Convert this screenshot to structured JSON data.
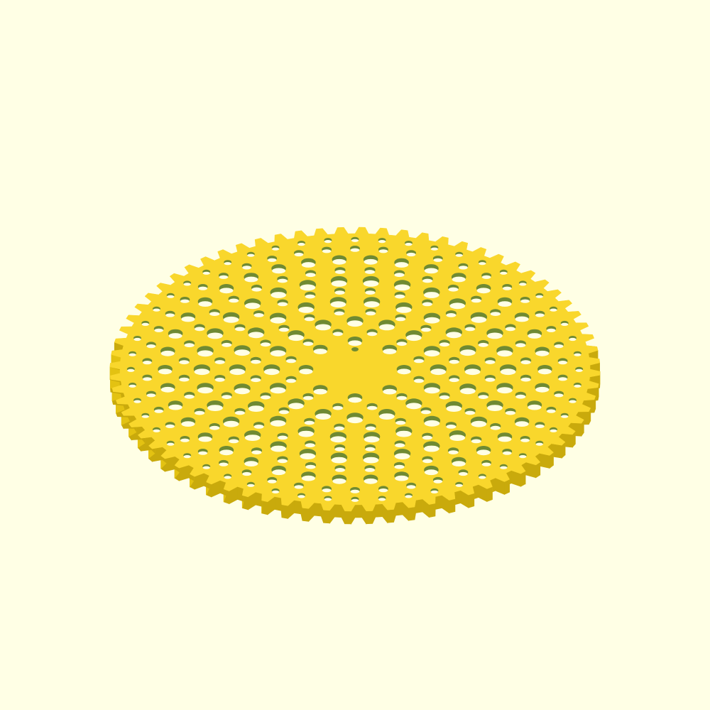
{
  "viewport": {
    "background_color": "#ffffe5"
  },
  "model": {
    "object": "gear-plate-icon",
    "tooth_count": 72,
    "top_color": "#f9d72c",
    "side_color": "#e3c212",
    "shadow_side_color": "#c9aa0c",
    "hole_wall_color": "#6f8a32",
    "hole_floor_color": "#ffffe5"
  }
}
